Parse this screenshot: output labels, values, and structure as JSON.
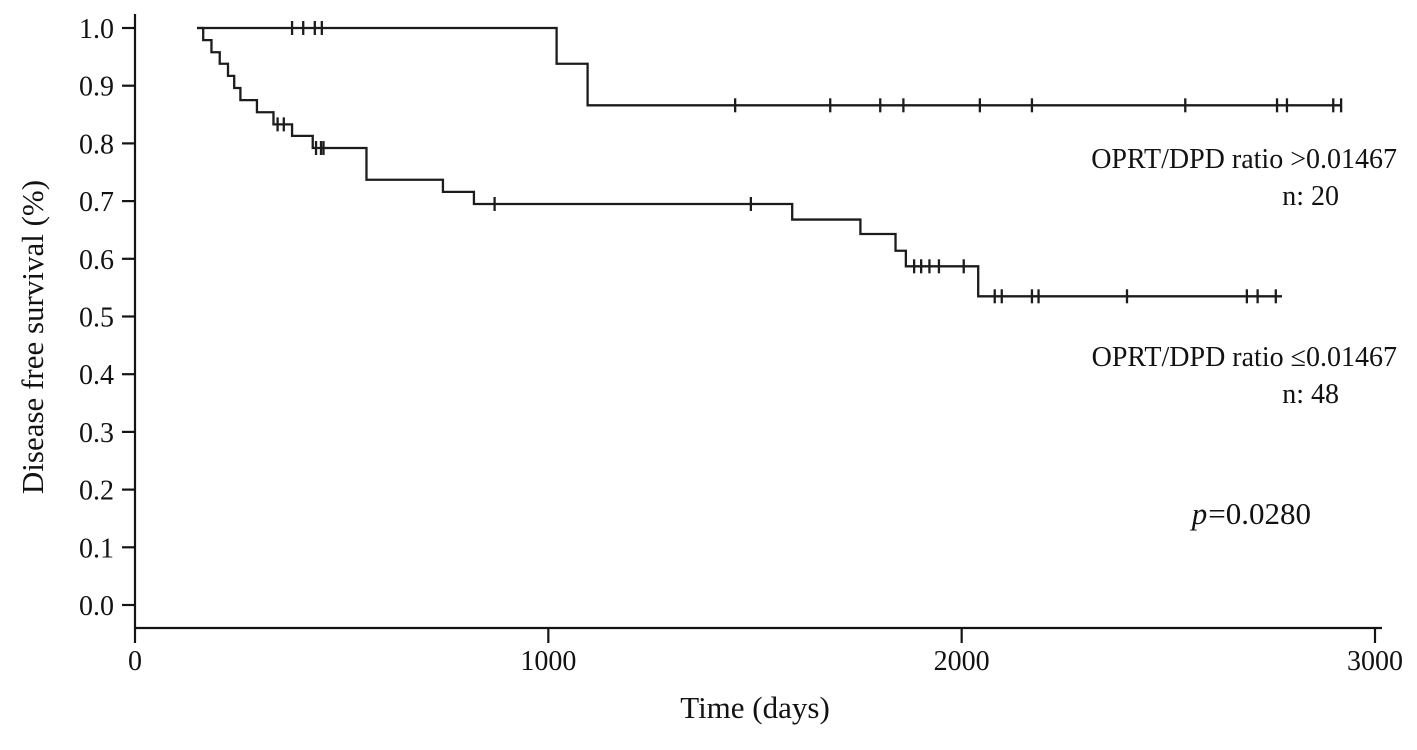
{
  "figure": {
    "background": "#ffffff",
    "line_color": "#1c1c1c"
  },
  "chart_data": {
    "type": "line",
    "subtype": "kaplan_meier_step",
    "title": "",
    "xlabel": "Time (days)",
    "ylabel": "Disease free survival (%)",
    "xlim": [
      0,
      3000
    ],
    "ylim": [
      0.0,
      1.0
    ],
    "grid": false,
    "legend_position": "inline-right",
    "x_ticks": [
      {
        "value": 0,
        "label": "0"
      },
      {
        "value": 1000,
        "label": "1000"
      },
      {
        "value": 2000,
        "label": "2000"
      },
      {
        "value": 3000,
        "label": "3000"
      }
    ],
    "y_ticks": [
      {
        "value": 1.0,
        "label": "1.0"
      },
      {
        "value": 0.9,
        "label": "0.9"
      },
      {
        "value": 0.8,
        "label": "0.8"
      },
      {
        "value": 0.7,
        "label": "0.7"
      },
      {
        "value": 0.6,
        "label": "0.6"
      },
      {
        "value": 0.5,
        "label": "0.5"
      },
      {
        "value": 0.4,
        "label": "0.4"
      },
      {
        "value": 0.3,
        "label": "0.3"
      },
      {
        "value": 0.2,
        "label": "0.2"
      },
      {
        "value": 0.1,
        "label": "0.1"
      },
      {
        "value": 0.0,
        "label": "0.0"
      }
    ],
    "series": [
      {
        "name": "OPRT/DPD ratio >0.01467",
        "n_label": "n: 20",
        "n": 20,
        "color": "#1c1c1c",
        "steps": [
          [
            150,
            1.0
          ],
          [
            1020,
            0.938
          ],
          [
            1095,
            0.866
          ],
          [
            2920,
            0.866
          ]
        ],
        "censors": [
          [
            380,
            1.0
          ],
          [
            407,
            1.0
          ],
          [
            435,
            1.0
          ],
          [
            452,
            1.0
          ],
          [
            1452,
            0.866
          ],
          [
            1682,
            0.866
          ],
          [
            1803,
            0.866
          ],
          [
            1859,
            0.866
          ],
          [
            2044,
            0.866
          ],
          [
            2170,
            0.866
          ],
          [
            2541,
            0.866
          ],
          [
            2763,
            0.866
          ],
          [
            2787,
            0.866
          ],
          [
            2899,
            0.866
          ],
          [
            2918,
            0.866
          ]
        ]
      },
      {
        "name": "OPRT/DPD ratio ≤0.01467",
        "n_label": "n: 48",
        "n": 48,
        "color": "#1c1c1c",
        "steps": [
          [
            150,
            1.0
          ],
          [
            165,
            0.979
          ],
          [
            185,
            0.958
          ],
          [
            205,
            0.938
          ],
          [
            225,
            0.917
          ],
          [
            240,
            0.896
          ],
          [
            255,
            0.875
          ],
          [
            295,
            0.854
          ],
          [
            335,
            0.833
          ],
          [
            380,
            0.813
          ],
          [
            430,
            0.792
          ],
          [
            560,
            0.737
          ],
          [
            745,
            0.716
          ],
          [
            820,
            0.695
          ],
          [
            1590,
            0.668
          ],
          [
            1755,
            0.643
          ],
          [
            1840,
            0.614
          ],
          [
            1865,
            0.587
          ],
          [
            2040,
            0.535
          ],
          [
            2775,
            0.535
          ]
        ],
        "censors": [
          [
            345,
            0.833
          ],
          [
            360,
            0.833
          ],
          [
            438,
            0.792
          ],
          [
            450,
            0.792
          ],
          [
            456,
            0.792
          ],
          [
            870,
            0.695
          ],
          [
            1490,
            0.695
          ],
          [
            1885,
            0.587
          ],
          [
            1902,
            0.587
          ],
          [
            1922,
            0.587
          ],
          [
            1945,
            0.587
          ],
          [
            2005,
            0.587
          ],
          [
            2080,
            0.535
          ],
          [
            2097,
            0.535
          ],
          [
            2170,
            0.535
          ],
          [
            2186,
            0.535
          ],
          [
            2400,
            0.535
          ],
          [
            2690,
            0.535
          ],
          [
            2716,
            0.535
          ],
          [
            2760,
            0.535
          ]
        ]
      }
    ],
    "p_annotation": {
      "symbol": "p",
      "text": "=0.0280",
      "display": "p=0.0280"
    }
  }
}
